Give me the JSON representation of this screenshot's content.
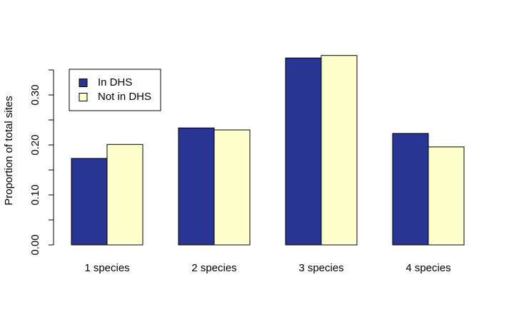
{
  "chart_data": {
    "type": "bar",
    "y_label": "Proportion of total sites",
    "categories": [
      "1 species",
      "2 species",
      "3 species",
      "4 species"
    ],
    "series": [
      {
        "name": "In DHS",
        "color": "#283593",
        "values": [
          0.173,
          0.234,
          0.374,
          0.223
        ]
      },
      {
        "name": "Not in DHS",
        "color": "#ffffcc",
        "values": [
          0.201,
          0.23,
          0.379,
          0.196
        ]
      }
    ],
    "ylim": [
      0,
      0.35
    ],
    "yticks": [
      {
        "value": 0,
        "label": "0.00"
      },
      {
        "value": 0.1,
        "label": "0.10"
      },
      {
        "value": 0.2,
        "label": "0.20"
      },
      {
        "value": 0.3,
        "label": "0.30"
      }
    ],
    "yticks_minor": [
      0.05,
      0.15,
      0.25,
      0.35
    ],
    "legend": "top-left"
  }
}
